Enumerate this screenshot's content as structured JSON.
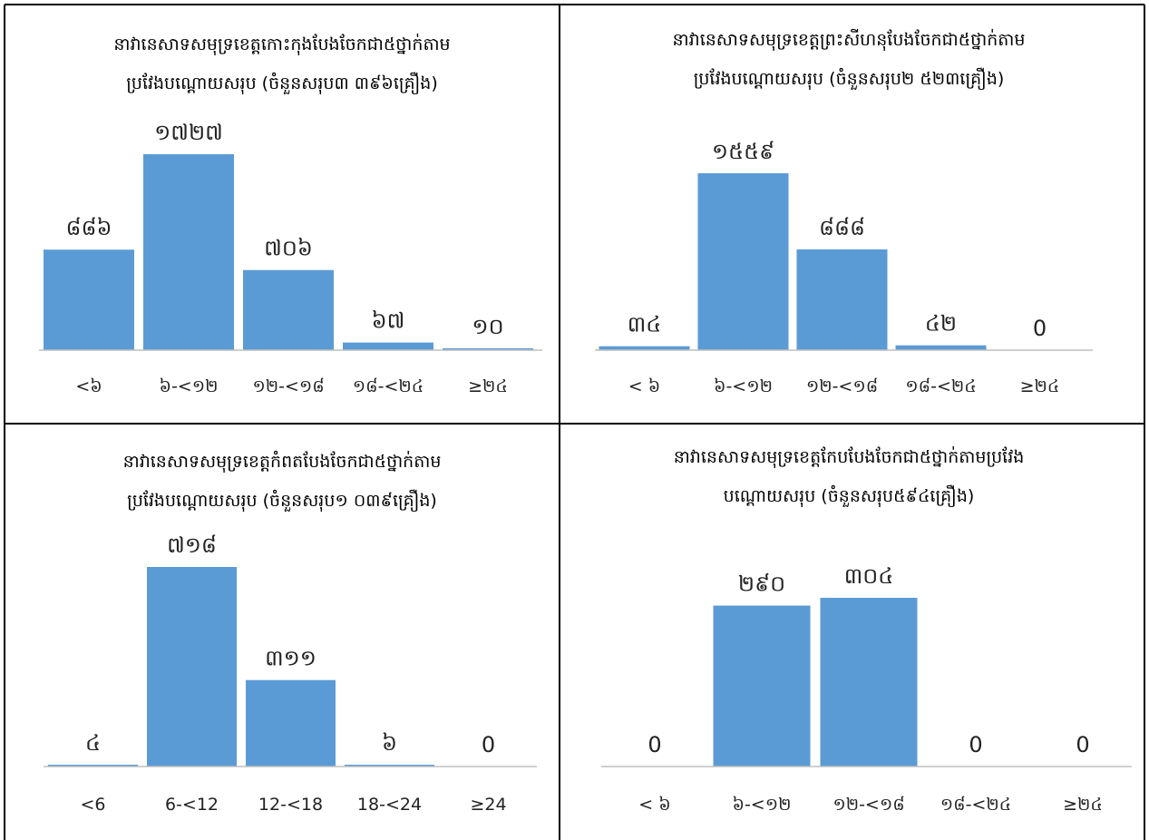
{
  "chart_data": [
    {
      "type": "bar",
      "title_lines": [
        "នាវានេសាទសមុទ្រខេត្តកោះកុងបែងចែកជា៥ថ្នាក់តាម",
        "ប្រវែងបណ្តោយសរុប (ចំនួនសរុប៣ ៣៩៦គ្រឿង)"
      ],
      "categories": [
        "<៦",
        "៦-<១២",
        "១២-<១៨",
        "១៨-<២៤",
        "≥២៤"
      ],
      "values": [
        886,
        1727,
        706,
        67,
        10
      ],
      "value_labels": [
        "៨៨៦",
        "១៧២៧",
        "៧០៦",
        "៦៧",
        "១០"
      ],
      "ylim": [
        0,
        1727
      ],
      "color": "#5b9bd5"
    },
    {
      "type": "bar",
      "title_lines": [
        "នាវានេសាទសមុទ្រខេត្តព្រះសីហនុបែងចែកជា៥ថ្នាក់តាម",
        "ប្រវែងបណ្តោយសរុប (ចំនួនសរុប២ ៥២៣គ្រឿង)"
      ],
      "categories": [
        "< ៦",
        "៦-<១២",
        "១២-<១៨",
        "១៨-<២៤",
        "≥២៤"
      ],
      "values": [
        34,
        1559,
        888,
        42,
        0
      ],
      "value_labels": [
        "៣៤",
        "១៥៥៩",
        "៨៨៨",
        "៤២",
        "0"
      ],
      "ylim": [
        0,
        1559
      ],
      "color": "#5b9bd5"
    },
    {
      "type": "bar",
      "title_lines": [
        "នាវានេសាទសមុទ្រខេត្តកំពតបែងចែកជា៥ថ្នាក់តាម",
        "ប្រវែងបណ្តោយសរុប (ចំនួនសរុប១ ០៣៩គ្រឿង)"
      ],
      "categories": [
        "<6",
        "6-<12",
        "12-<18",
        "18-<24",
        "≥24"
      ],
      "values": [
        4,
        718,
        311,
        6,
        0
      ],
      "value_labels": [
        "៤",
        "៧១៨",
        "៣១១",
        "៦",
        "0"
      ],
      "ylim": [
        0,
        718
      ],
      "color": "#5b9bd5"
    },
    {
      "type": "bar",
      "title_lines": [
        "នាវានេសាទសមុទ្រខេត្តកែបបែងចែកជា៥ថ្នាក់តាមប្រវែង",
        "បណ្តោយសរុប (ចំនួនសរុប៥៩៤គ្រឿង)"
      ],
      "categories": [
        "< ៦",
        "៦-<១២",
        "១២-<១៨",
        "១៨-<២៤",
        "≥២៤"
      ],
      "values": [
        0,
        290,
        304,
        0,
        0
      ],
      "value_labels": [
        "0",
        "២៩០",
        "៣០៤",
        "0",
        "0"
      ],
      "ylim": [
        0,
        304
      ],
      "color": "#5b9bd5"
    }
  ]
}
